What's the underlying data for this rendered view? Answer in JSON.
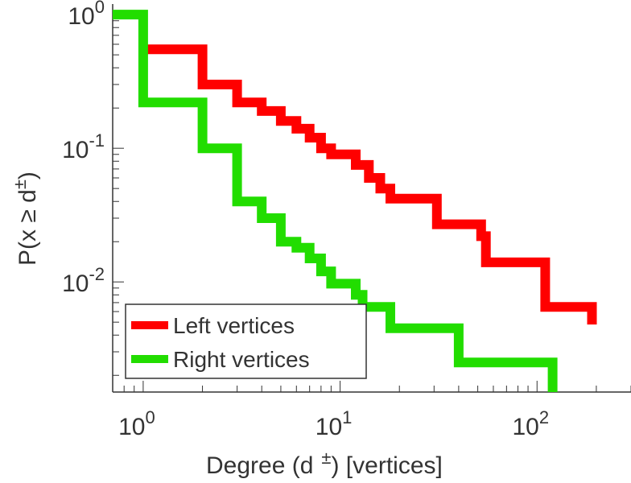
{
  "chart_data": {
    "type": "line",
    "step": true,
    "xscale": "log",
    "yscale": "log",
    "xlim": [
      0.7,
      300
    ],
    "ylim": [
      0.0015,
      1.2
    ],
    "xlabel": {
      "main": "Degree (d",
      "sup": "±",
      "tail": ") [vertices]"
    },
    "ylabel": {
      "main": "P(x ≥ d",
      "sup": "±",
      "tail": ")"
    },
    "xticks": [
      {
        "base": "10",
        "exp": "0",
        "value": 1
      },
      {
        "base": "10",
        "exp": "1",
        "value": 10
      },
      {
        "base": "10",
        "exp": "2",
        "value": 100
      }
    ],
    "yticks": [
      {
        "base": "10",
        "exp": "0",
        "value": 1
      },
      {
        "base": "10",
        "exp": "-1",
        "value": 0.1
      },
      {
        "base": "10",
        "exp": "-2",
        "value": 0.01
      }
    ],
    "legend_position": "bottom-left",
    "grid": false,
    "series": [
      {
        "name": "Left vertices",
        "color": "#ff0000",
        "points": [
          [
            1,
            0.55
          ],
          [
            2,
            0.55
          ],
          [
            2,
            0.3
          ],
          [
            3,
            0.3
          ],
          [
            3,
            0.22
          ],
          [
            4,
            0.22
          ],
          [
            4,
            0.19
          ],
          [
            5,
            0.19
          ],
          [
            5,
            0.16
          ],
          [
            6,
            0.16
          ],
          [
            6,
            0.14
          ],
          [
            7,
            0.14
          ],
          [
            7,
            0.12
          ],
          [
            8,
            0.12
          ],
          [
            8,
            0.1
          ],
          [
            9,
            0.1
          ],
          [
            9,
            0.09
          ],
          [
            12,
            0.09
          ],
          [
            12,
            0.075
          ],
          [
            14,
            0.075
          ],
          [
            14,
            0.06
          ],
          [
            16,
            0.06
          ],
          [
            16,
            0.05
          ],
          [
            18,
            0.05
          ],
          [
            18,
            0.042
          ],
          [
            31,
            0.042
          ],
          [
            31,
            0.027
          ],
          [
            52,
            0.027
          ],
          [
            52,
            0.022
          ],
          [
            55,
            0.022
          ],
          [
            55,
            0.014
          ],
          [
            110,
            0.014
          ],
          [
            110,
            0.0065
          ],
          [
            190,
            0.0065
          ],
          [
            190,
            0.0048
          ]
        ]
      },
      {
        "name": "Right vertices",
        "color": "#22dd00",
        "points": [
          [
            0.7,
            1
          ],
          [
            1,
            1
          ],
          [
            1,
            0.22
          ],
          [
            2,
            0.22
          ],
          [
            2,
            0.1
          ],
          [
            3,
            0.1
          ],
          [
            3,
            0.04
          ],
          [
            4,
            0.04
          ],
          [
            4,
            0.03
          ],
          [
            5,
            0.03
          ],
          [
            5,
            0.02
          ],
          [
            6,
            0.02
          ],
          [
            6,
            0.018
          ],
          [
            7,
            0.018
          ],
          [
            7,
            0.015
          ],
          [
            8,
            0.015
          ],
          [
            8,
            0.012
          ],
          [
            9,
            0.012
          ],
          [
            9,
            0.0097
          ],
          [
            12,
            0.0097
          ],
          [
            12,
            0.008
          ],
          [
            13,
            0.008
          ],
          [
            13,
            0.0065
          ],
          [
            18,
            0.0065
          ],
          [
            18,
            0.0045
          ],
          [
            40,
            0.0045
          ],
          [
            40,
            0.0025
          ],
          [
            120,
            0.0025
          ],
          [
            120,
            0.0015
          ]
        ]
      }
    ]
  }
}
